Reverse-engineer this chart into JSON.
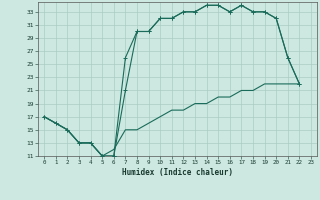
{
  "xlabel": "Humidex (Indice chaleur)",
  "bg_color": "#cce8e0",
  "grid_color": "#aaccc4",
  "line_color": "#1a6b5a",
  "xlim_min": -0.5,
  "xlim_max": 23.5,
  "ylim_min": 11,
  "ylim_max": 34.5,
  "yticks": [
    11,
    13,
    15,
    17,
    19,
    21,
    23,
    25,
    27,
    29,
    31,
    33
  ],
  "xticks": [
    0,
    1,
    2,
    3,
    4,
    5,
    6,
    7,
    8,
    9,
    10,
    11,
    12,
    13,
    14,
    15,
    16,
    17,
    18,
    19,
    20,
    21,
    22,
    23
  ],
  "line1_x": [
    0,
    1,
    2,
    3,
    4,
    5,
    6,
    7,
    8,
    9,
    10,
    11,
    12,
    13,
    14,
    15,
    16,
    17,
    18,
    19,
    20,
    21,
    22
  ],
  "line1_y": [
    17,
    16,
    15,
    13,
    13,
    11,
    11,
    21,
    30,
    30,
    32,
    32,
    33,
    33,
    34,
    34,
    33,
    34,
    33,
    33,
    32,
    26,
    22
  ],
  "line2_x": [
    0,
    1,
    2,
    3,
    4,
    5,
    6,
    7,
    8,
    9,
    10,
    11,
    12,
    13,
    14,
    15,
    16,
    17,
    18,
    19,
    20,
    21,
    22
  ],
  "line2_y": [
    17,
    16,
    15,
    13,
    13,
    11,
    11,
    26,
    30,
    30,
    32,
    32,
    33,
    33,
    34,
    34,
    33,
    34,
    33,
    33,
    32,
    26,
    22
  ],
  "line3_x": [
    0,
    1,
    2,
    3,
    4,
    5,
    6,
    7,
    8,
    9,
    10,
    11,
    12,
    13,
    14,
    15,
    16,
    17,
    18,
    19,
    20,
    21,
    22
  ],
  "line3_y": [
    17,
    16,
    15,
    13,
    13,
    11,
    12,
    15,
    15,
    16,
    17,
    18,
    18,
    19,
    19,
    20,
    20,
    21,
    21,
    22,
    22,
    22,
    22
  ]
}
